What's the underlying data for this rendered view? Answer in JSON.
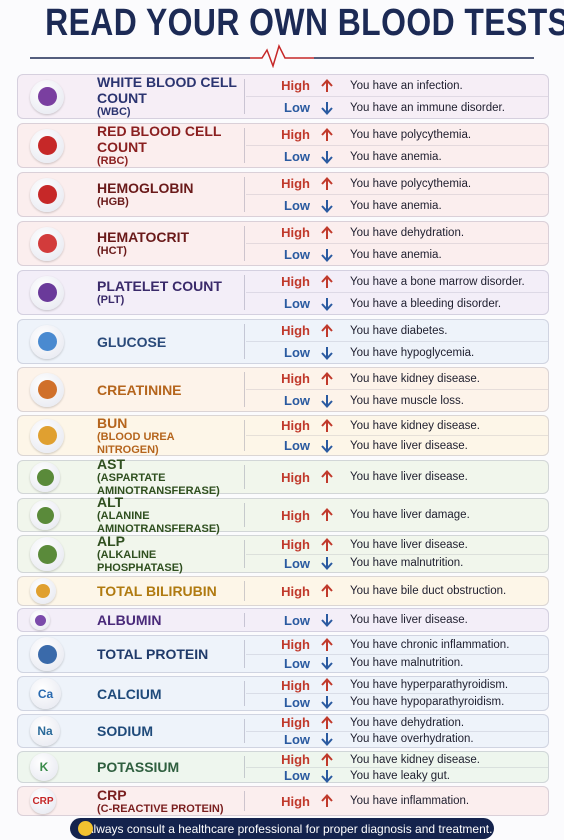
{
  "title": "READ YOUR OWN BLOOD TESTS",
  "tests": [
    {
      "name": "WHITE BLOOD CELL COUNT",
      "abbr": "(WBC)",
      "results": [
        {
          "level": "High",
          "arrow": "up",
          "text": "You have an infection."
        },
        {
          "level": "Low",
          "arrow": "down",
          "text": "You have an immune disorder."
        }
      ]
    },
    {
      "name": "RED BLOOD CELL COUNT",
      "abbr": "(RBC)",
      "results": [
        {
          "level": "High",
          "arrow": "up",
          "text": "You have polycythemia."
        },
        {
          "level": "Low",
          "arrow": "down",
          "text": "You have anemia."
        }
      ]
    },
    {
      "name": "HEMOGLOBIN",
      "abbr": "(HGB)",
      "results": [
        {
          "level": "High",
          "arrow": "up",
          "text": "You have polycythemia."
        },
        {
          "level": "Low",
          "arrow": "down",
          "text": "You have anemia."
        }
      ]
    },
    {
      "name": "HEMATOCRIT",
      "abbr": "(HCT)",
      "results": [
        {
          "level": "High",
          "arrow": "up",
          "text": "You have dehydration."
        },
        {
          "level": "Low",
          "arrow": "down",
          "text": "You have anemia."
        }
      ]
    },
    {
      "name": "PLATELET COUNT",
      "abbr": "(PLT)",
      "results": [
        {
          "level": "High",
          "arrow": "up",
          "text": "You have a bone marrow disorder."
        },
        {
          "level": "Low",
          "arrow": "down",
          "text": "You have a bleeding disorder."
        }
      ]
    },
    {
      "name": "GLUCOSE",
      "results": [
        {
          "level": "High",
          "arrow": "up",
          "text": "You have diabetes."
        },
        {
          "level": "Low",
          "arrow": "down",
          "text": "You have hypoglycemia."
        }
      ]
    },
    {
      "name": "CREATININE",
      "results": [
        {
          "level": "High",
          "arrow": "up",
          "text": "You have kidney disease."
        },
        {
          "level": "Low",
          "arrow": "down",
          "text": "You have muscle loss."
        }
      ]
    },
    {
      "name": "BUN",
      "abbr": "(BLOOD UREA NITROGEN)",
      "results": [
        {
          "level": "High",
          "arrow": "up",
          "text": "You have kidney disease."
        },
        {
          "level": "Low",
          "arrow": "down",
          "text": "You have liver disease."
        }
      ]
    },
    {
      "name": "AST",
      "abbr": "(ASPARTATE AMINOTRANSFERASE)",
      "results": [
        {
          "level": "High",
          "arrow": "up",
          "text": "You have liver disease."
        }
      ]
    },
    {
      "name": "ALT",
      "abbr": "(ALANINE AMINOTRANSFERASE)",
      "results": [
        {
          "level": "High",
          "arrow": "up",
          "text": "You have liver damage."
        }
      ]
    },
    {
      "name": "ALP",
      "abbr": "(ALKALINE PHOSPHATASE)",
      "results": [
        {
          "level": "High",
          "arrow": "up",
          "text": "You have liver disease."
        },
        {
          "level": "Low",
          "arrow": "down",
          "text": "You have malnutrition."
        }
      ]
    },
    {
      "name": "TOTAL BILIRUBIN",
      "results": [
        {
          "level": "High",
          "arrow": "up",
          "text": "You have bile duct obstruction."
        }
      ]
    },
    {
      "name": "ALBUMIN",
      "results": [
        {
          "level": "Low",
          "arrow": "down",
          "text": "You have liver disease."
        }
      ]
    },
    {
      "name": "TOTAL PROTEIN",
      "results": [
        {
          "level": "High",
          "arrow": "up",
          "text": "You have chronic inflammation."
        },
        {
          "level": "Low",
          "arrow": "down",
          "text": "You have malnutrition."
        }
      ]
    },
    {
      "name": "CALCIUM",
      "symbol": "Ca",
      "results": [
        {
          "level": "High",
          "arrow": "up",
          "text": "You have hyperparathyroidism."
        },
        {
          "level": "Low",
          "arrow": "down",
          "text": "You have hypoparathyroidism."
        }
      ]
    },
    {
      "name": "SODIUM",
      "symbol": "Na",
      "results": [
        {
          "level": "High",
          "arrow": "up",
          "text": "You have dehydration."
        },
        {
          "level": "Low",
          "arrow": "down",
          "text": "You have overhydration."
        }
      ]
    },
    {
      "name": "POTASSIUM",
      "symbol": "K",
      "results": [
        {
          "level": "High",
          "arrow": "up",
          "text": "You have kidney disease."
        },
        {
          "level": "Low",
          "arrow": "down",
          "text": "You have leaky gut."
        }
      ]
    },
    {
      "name": "CRP",
      "abbr": "(C-REACTIVE PROTEIN)",
      "symbol": "CRP",
      "results": [
        {
          "level": "High",
          "arrow": "up",
          "text": "You have inflammation."
        }
      ]
    }
  ],
  "footer": "Always consult a healthcare professional for proper diagnosis and treatment."
}
